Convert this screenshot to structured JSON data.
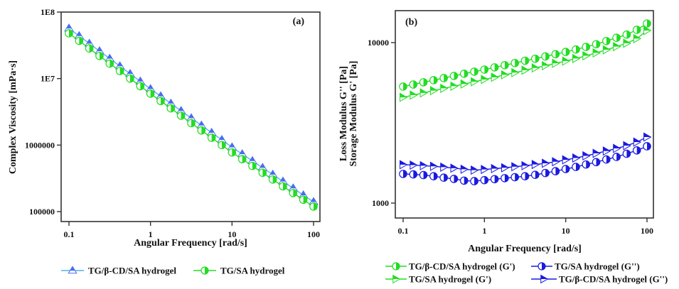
{
  "chart_data": [
    {
      "type": "line",
      "panel_label": "(a)",
      "title": "",
      "xlabel": "Angular Frequency [rad/s]",
      "ylabel": "Complex Viscosity [mPa·s]",
      "xscale": "log",
      "yscale": "log",
      "xlim": [
        0.09,
        115
      ],
      "ylim": [
        70000,
        100000000
      ],
      "x_ticks": [
        0.1,
        1,
        10,
        100
      ],
      "x_tick_labels": [
        "0.1",
        "1",
        "10",
        "100"
      ],
      "y_ticks": [
        100000,
        1000000,
        10000000,
        100000000
      ],
      "y_tick_labels": [
        "100000",
        "1000000",
        "1E7",
        "1E8"
      ],
      "grid": false,
      "legend_position": "bottom",
      "x": [
        0.1,
        0.1334,
        0.1778,
        0.2371,
        0.3162,
        0.4217,
        0.5623,
        0.7499,
        1,
        1.334,
        1.778,
        2.371,
        3.162,
        4.217,
        5.623,
        7.499,
        10,
        13.34,
        17.78,
        23.71,
        31.62,
        42.17,
        56.23,
        74.99,
        100
      ],
      "series": [
        {
          "name": "TG/β-CD/SA hydrogel",
          "color": "#4a6cf0",
          "line_color": "#4fb3f0",
          "marker": "triangle-up-half",
          "values": [
            56900000,
            43800000,
            33700000,
            25900000,
            20000000,
            15400000,
            11800000,
            9100000,
            7000000,
            5440000,
            4230000,
            3280000,
            2550000,
            1980000,
            1540000,
            1200000,
            929000,
            733000,
            579000,
            457000,
            361000,
            285000,
            225000,
            177000,
            140000
          ]
        },
        {
          "name": "TG/SA hydrogel",
          "color": "#22dd22",
          "line_color": "#22dd22",
          "marker": "circle-half-right",
          "values": [
            47900000,
            36900000,
            28400000,
            21900000,
            16800000,
            13000000,
            10000000,
            7690000,
            5930000,
            4600000,
            3570000,
            2770000,
            2140000,
            1660000,
            1290000,
            1000000,
            776000,
            614000,
            486000,
            384000,
            304000,
            240000,
            190000,
            151000,
            119000
          ]
        }
      ]
    },
    {
      "type": "line",
      "panel_label": "(b)",
      "title": "",
      "xlabel": "Angular Frequency [rad/s]",
      "ylabel": "Storage Modulus G' [Pa]",
      "ylabel2": "Loss Modulus G'' [Pa]",
      "xscale": "log",
      "yscale": "log",
      "xlim": [
        0.09,
        115
      ],
      "ylim": [
        830,
        16000
      ],
      "x_ticks": [
        0.1,
        1,
        10,
        100
      ],
      "x_tick_labels": [
        "0.1",
        "1",
        "10",
        "100"
      ],
      "y_ticks": [
        1000,
        10000
      ],
      "y_tick_labels": [
        "1000",
        "10000"
      ],
      "grid": false,
      "legend_position": "bottom",
      "x": [
        0.1,
        0.1334,
        0.1778,
        0.2371,
        0.3162,
        0.4217,
        0.5623,
        0.7499,
        1,
        1.334,
        1.778,
        2.371,
        3.162,
        4.217,
        5.623,
        7.499,
        10,
        13.34,
        17.78,
        23.71,
        31.62,
        42.17,
        56.23,
        74.99,
        100
      ],
      "series": [
        {
          "name": "TG/β-CD/SA hydrogel (G')",
          "color": "#22dd22",
          "marker": "circle-half-right",
          "values": [
            5320,
            5480,
            5660,
            5830,
            6010,
            6200,
            6400,
            6590,
            6790,
            7010,
            7230,
            7460,
            7710,
            7940,
            8200,
            8470,
            8750,
            9060,
            9400,
            9770,
            10230,
            10720,
            11220,
            12020,
            13150
          ]
        },
        {
          "name": "TG/SA hydrogel  (G'')",
          "color": "#1a1ae0",
          "marker": "circle-half-right",
          "values": [
            1520,
            1510,
            1495,
            1470,
            1440,
            1415,
            1380,
            1370,
            1390,
            1410,
            1430,
            1450,
            1470,
            1500,
            1540,
            1580,
            1630,
            1680,
            1740,
            1800,
            1870,
            1940,
            2030,
            2130,
            2260
          ]
        },
        {
          "name": "TG/SA hydrogel (G')",
          "color": "#22dd22",
          "marker": "triangle-right-half",
          "values": [
            4560,
            4710,
            4860,
            5020,
            5190,
            5350,
            5520,
            5700,
            5890,
            6080,
            6300,
            6500,
            6730,
            6950,
            7180,
            7430,
            7670,
            7960,
            8280,
            8630,
            9020,
            9440,
            9910,
            10590,
            11890
          ]
        },
        {
          "name": "TG/β-CD/SA hydrogel (G'')",
          "color": "#1a1ae0",
          "marker": "triangle-right-half",
          "values": [
            1735,
            1725,
            1710,
            1695,
            1675,
            1650,
            1625,
            1605,
            1620,
            1640,
            1660,
            1685,
            1710,
            1740,
            1770,
            1810,
            1860,
            1910,
            1970,
            2040,
            2110,
            2190,
            2280,
            2400,
            2580
          ]
        }
      ]
    }
  ]
}
